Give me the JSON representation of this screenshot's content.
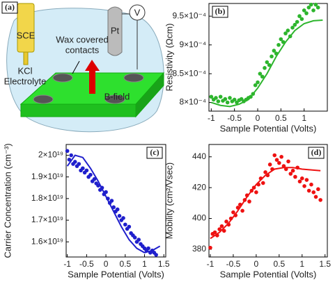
{
  "diagram": {
    "label": "(a)",
    "sce": "SCE",
    "kcl": "KCl",
    "electrolyte": "Electrolyte",
    "pt": "Pt",
    "v": "V",
    "wax1": "Wax covered",
    "wax2": "contacts",
    "bfield": "B-field"
  },
  "chart_data": [
    {
      "type": "scatter",
      "panel_label": "(b)",
      "xlabel": "Sample Potential (Volts)",
      "ylabel": "Resistivity (Ωcm)",
      "xlim": [
        -1.05,
        1.5
      ],
      "xticks": [
        -1,
        -0.5,
        0,
        0.5,
        1
      ],
      "ylim": [
        0.000785,
        0.000972
      ],
      "yticks": [
        {
          "value": 0.0008,
          "label": "8×10⁻⁴"
        },
        {
          "value": 0.00085,
          "label": "8.5×10⁻⁴"
        },
        {
          "value": 0.0009,
          "label": "9×10⁻⁴"
        },
        {
          "value": 0.00095,
          "label": "9.5×10⁻⁴"
        }
      ],
      "series": [
        {
          "type": "scatter",
          "color": "#2db52d",
          "x": [
            -1,
            -0.95,
            -0.9,
            -0.85,
            -0.8,
            -0.75,
            -0.7,
            -0.65,
            -0.6,
            -0.55,
            -0.5,
            -0.45,
            -0.4,
            -0.35,
            -0.3,
            -0.25,
            -0.2,
            -0.15,
            -0.1,
            -0.05,
            0,
            0.05,
            0.1,
            0.15,
            0.2,
            0.25,
            0.3,
            0.35,
            0.4,
            0.45,
            0.5,
            0.55,
            0.6,
            0.65,
            0.7,
            0.75,
            0.8,
            0.85,
            0.9,
            0.95,
            1,
            1.05,
            1.1,
            1.15,
            1.2,
            1.25,
            1.3
          ],
          "values": [
            0.00081,
            0.000805,
            0.000808,
            0.000802,
            0.00081,
            0.000803,
            0.000806,
            0.0008,
            0.000808,
            0.000802,
            0.000805,
            0.0008,
            0.000804,
            0.000806,
            0.000802,
            0.000805,
            0.000808,
            0.00081,
            0.000815,
            0.00083,
            0.000835,
            0.00085,
            0.000845,
            0.00086,
            0.00087,
            0.000865,
            0.00088,
            0.00089,
            0.000885,
            0.0009,
            0.00091,
            0.000905,
            0.00092,
            0.000925,
            0.000915,
            0.00093,
            0.000935,
            0.00094,
            0.00095,
            0.000945,
            0.00096,
            0.000955,
            0.000965,
            0.00097,
            0.00096,
            0.00097,
            0.000965
          ]
        },
        {
          "type": "line",
          "color": "#2db52d",
          "x": [
            -1,
            -0.8,
            -0.6,
            -0.4,
            -0.2,
            0,
            0.2,
            0.4,
            0.6,
            0.8,
            1,
            1.2,
            1.4
          ],
          "values": [
            0.0008,
            0.000795,
            0.000793,
            0.000797,
            0.000805,
            0.000825,
            0.00085,
            0.00088,
            0.000905,
            0.000925,
            0.000937,
            0.000942,
            0.000943
          ]
        }
      ]
    },
    {
      "type": "scatter",
      "panel_label": "(c)",
      "xlabel": "Sample Potential (Volts)",
      "ylabel": "Carrier Concentration (cm⁻³)",
      "xlim": [
        -1.03,
        1.55
      ],
      "xticks": [
        -1,
        -0.5,
        0,
        0.5,
        1,
        1.5
      ],
      "ylim": [
        1.53e+19,
        2.05e+19
      ],
      "yticks": [
        {
          "value": 1.6e+19,
          "label": "1.6×10¹⁹"
        },
        {
          "value": 1.7e+19,
          "label": "1.7×10¹⁹"
        },
        {
          "value": 1.8e+19,
          "label": "1.8×10¹⁹"
        },
        {
          "value": 1.9e+19,
          "label": "1.9×10¹⁹"
        },
        {
          "value": 2e+19,
          "label": "2×10¹⁹"
        }
      ],
      "series": [
        {
          "type": "scatter",
          "color": "#1f1fcc",
          "x": [
            -1,
            -0.95,
            -0.9,
            -0.85,
            -0.8,
            -0.75,
            -0.7,
            -0.65,
            -0.6,
            -0.55,
            -0.5,
            -0.45,
            -0.4,
            -0.35,
            -0.3,
            -0.25,
            -0.2,
            -0.15,
            -0.1,
            -0.05,
            0,
            0.05,
            0.1,
            0.15,
            0.2,
            0.25,
            0.3,
            0.35,
            0.4,
            0.45,
            0.5,
            0.55,
            0.6,
            0.65,
            0.7,
            0.75,
            0.8,
            0.85,
            0.9,
            0.95,
            1,
            1.05,
            1.1,
            1.15,
            1.2,
            1.25,
            1.3
          ],
          "values": [
            2.02e+19,
            1.98e+19,
            2e+19,
            1.96e+19,
            1.97e+19,
            1.95e+19,
            1.96e+19,
            1.93e+19,
            1.94e+19,
            1.92e+19,
            1.93e+19,
            1.9e+19,
            1.91e+19,
            1.88e+19,
            1.89e+19,
            1.87e+19,
            1.86e+19,
            1.84e+19,
            1.85e+19,
            1.82e+19,
            1.83e+19,
            1.8e+19,
            1.78e+19,
            1.79e+19,
            1.76e+19,
            1.74e+19,
            1.75e+19,
            1.72e+19,
            1.7e+19,
            1.71e+19,
            1.68e+19,
            1.66e+19,
            1.67e+19,
            1.64e+19,
            1.63e+19,
            1.62e+19,
            1.6e+19,
            1.61e+19,
            1.59e+19,
            1.58e+19,
            1.57e+19,
            1.56e+19,
            1.57e+19,
            1.55e+19,
            1.56e+19,
            1.55e+19,
            1.54e+19
          ]
        },
        {
          "type": "line",
          "color": "#1f1fcc",
          "x": [
            -1,
            -0.8,
            -0.6,
            -0.4,
            -0.2,
            0,
            0.2,
            0.4,
            0.6,
            0.8,
            1,
            1.2,
            1.4
          ],
          "values": [
            1.95e+19,
            2e+19,
            1.99e+19,
            1.94e+19,
            1.88e+19,
            1.81e+19,
            1.74e+19,
            1.67e+19,
            1.61e+19,
            1.57e+19,
            1.55e+19,
            1.56e+19,
            1.58e+19
          ]
        }
      ]
    },
    {
      "type": "scatter",
      "panel_label": "(d)",
      "xlabel": "Sample Potential (Volts)",
      "ylabel": "Mobility (cm²/Vsec)",
      "xlim": [
        -1.03,
        1.55
      ],
      "xticks": [
        -1,
        -0.5,
        0,
        0.5,
        1,
        1.5
      ],
      "ylim": [
        375,
        448
      ],
      "yticks": [
        380,
        400,
        420,
        440
      ],
      "series": [
        {
          "type": "scatter",
          "color": "#ee1111",
          "x": [
            -1,
            -0.95,
            -0.9,
            -0.85,
            -0.8,
            -0.75,
            -0.7,
            -0.65,
            -0.6,
            -0.55,
            -0.5,
            -0.45,
            -0.4,
            -0.35,
            -0.3,
            -0.25,
            -0.2,
            -0.15,
            -0.1,
            -0.05,
            0,
            0.05,
            0.1,
            0.15,
            0.2,
            0.25,
            0.3,
            0.35,
            0.4,
            0.45,
            0.5,
            0.55,
            0.6,
            0.65,
            0.7,
            0.75,
            0.8,
            0.85,
            0.9,
            0.95,
            1,
            1.05,
            1.1,
            1.15,
            1.2,
            1.25,
            1.3,
            1.35,
            1.4
          ],
          "values": [
            381,
            390,
            391,
            389,
            393,
            395,
            392,
            398,
            396,
            400,
            404,
            402,
            407,
            409,
            405,
            412,
            415,
            411,
            418,
            420,
            417,
            422,
            426,
            423,
            430,
            428,
            435,
            432,
            441,
            438,
            436,
            440,
            434,
            432,
            437,
            429,
            431,
            427,
            433,
            424,
            426,
            421,
            425,
            418,
            422,
            417,
            414,
            419,
            412
          ]
        },
        {
          "type": "line",
          "color": "#ee1111",
          "x": [
            -1,
            -0.8,
            -0.6,
            -0.4,
            -0.2,
            0,
            0.2,
            0.4,
            0.6,
            0.8,
            1,
            1.2,
            1.4
          ],
          "values": [
            387,
            391,
            397,
            405,
            414,
            422,
            428,
            432,
            433,
            433,
            432,
            431.5,
            431
          ]
        }
      ]
    }
  ]
}
